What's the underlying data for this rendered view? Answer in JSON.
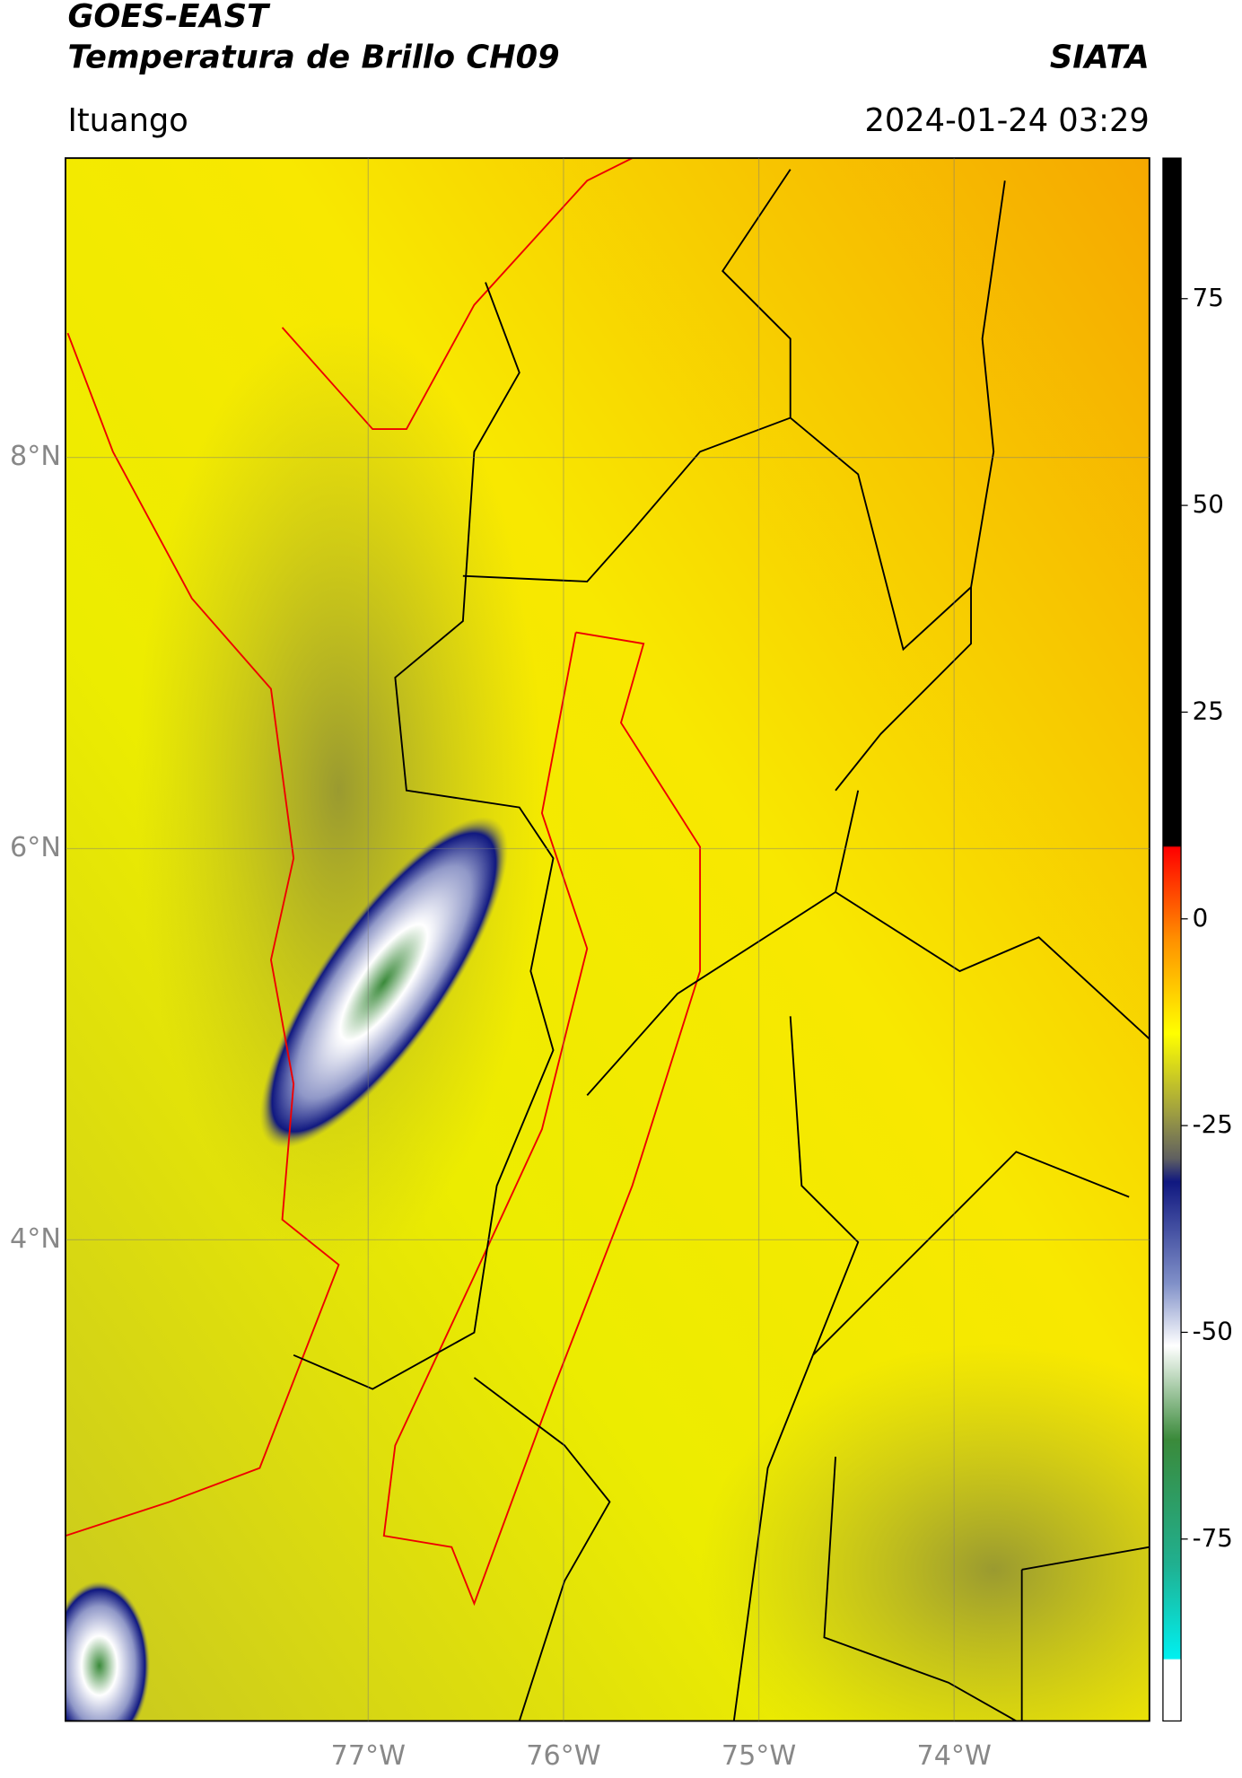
{
  "title": "GOES-EAST",
  "subtitle": "Temperatura de Brillo CH09",
  "brand": "SIATA",
  "location": "Ituango",
  "datetime": "2024-01-24 03:29",
  "map": {
    "lon_range": [
      -78.55,
      -73.0
    ],
    "lat_range": [
      1.54,
      9.53
    ],
    "lat_ticks": [
      {
        "value": 8,
        "label": "8°N"
      },
      {
        "value": 6,
        "label": "6°N"
      },
      {
        "value": 4,
        "label": "4°N"
      }
    ],
    "lon_ticks": [
      {
        "value": -77,
        "label": "77°W"
      },
      {
        "value": -76,
        "label": "76°W"
      },
      {
        "value": -75,
        "label": "75°W"
      },
      {
        "value": -74,
        "label": "74°W"
      }
    ]
  },
  "colorbar": {
    "lim": [
      -97,
      92
    ],
    "ticks": [
      75,
      50,
      25,
      0,
      -25,
      -50,
      -75
    ]
  }
}
